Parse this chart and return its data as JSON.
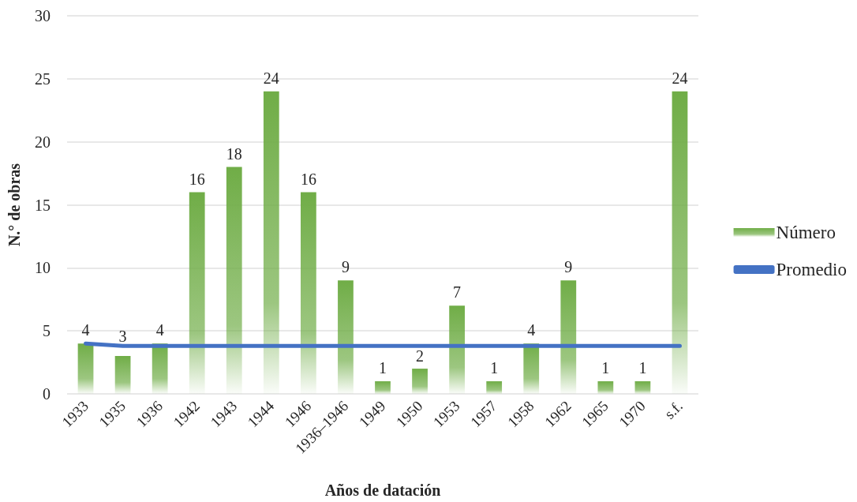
{
  "chart_data": {
    "type": "bar",
    "xlabel": "Años de datación",
    "ylabel": "N.° de obras",
    "categories": [
      "1933",
      "1935",
      "1936",
      "1942",
      "1943",
      "1944",
      "1946",
      "1936–1946",
      "1949",
      "1950",
      "1953",
      "1957",
      "1958",
      "1962",
      "1965",
      "1970",
      "s.f."
    ],
    "series": [
      {
        "name": "Número",
        "color": "#70ad47",
        "values": [
          4,
          3,
          4,
          16,
          18,
          24,
          16,
          9,
          1,
          2,
          7,
          1,
          4,
          9,
          1,
          1,
          24
        ],
        "value_labels": [
          "4",
          "3",
          "4",
          "16",
          "18",
          "24",
          "16",
          "9",
          "1",
          "2",
          "7",
          "1",
          "4",
          "9",
          "1",
          "1",
          "24"
        ]
      },
      {
        "name": "Promedio",
        "type": "line",
        "color": "#4472c4",
        "values": [
          4,
          3.8,
          3.8,
          3.8,
          3.8,
          3.8,
          3.8,
          3.8,
          3.8,
          3.8,
          3.8,
          3.8,
          3.8,
          3.8,
          3.8,
          3.8,
          3.8
        ]
      }
    ],
    "ylim": [
      0,
      30
    ],
    "yticks": [
      0,
      5,
      10,
      15,
      20,
      25,
      30
    ],
    "grid": "y",
    "legend": "right",
    "marker": "none",
    "line_style": "solid"
  }
}
